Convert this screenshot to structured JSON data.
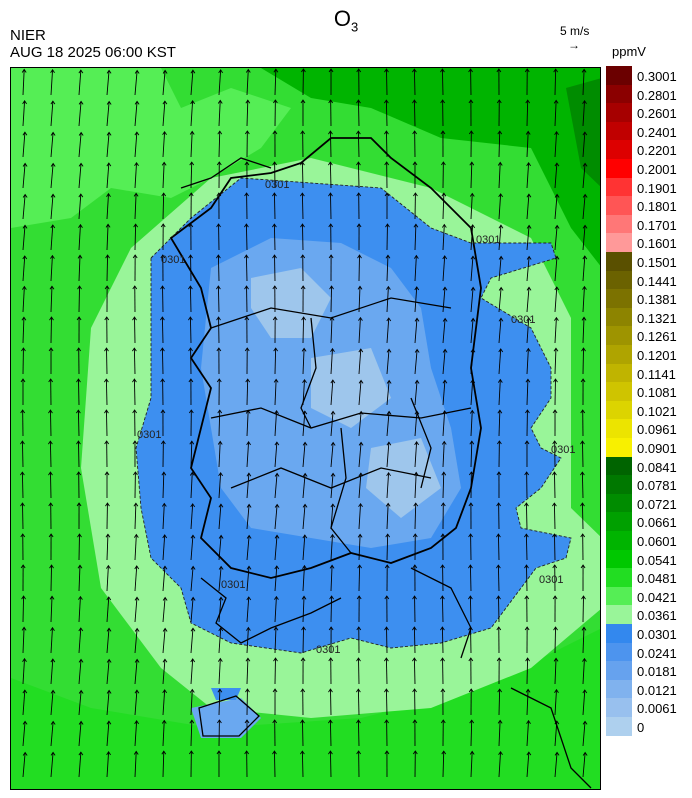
{
  "header": {
    "title_main": "O",
    "title_sub": "3",
    "organization": "NIER",
    "timestamp": "AUG 18 2025 06:00 KST",
    "wind_scale_label": "5 m/s",
    "wind_scale_arrow": "→",
    "unit_label": "ppmV"
  },
  "map": {
    "contour_label": "0301",
    "colors": {
      "sea_green": "#33dd33",
      "light_green": "#7ff07f",
      "dark_green": "#009900",
      "blue": "#3d8ff0",
      "light_blue": "#6aa8f0",
      "pale_blue": "#9ec6ec"
    }
  },
  "legend": {
    "entries": [
      {
        "label": "0.3001",
        "color": "#6b0000"
      },
      {
        "label": "0.2801",
        "color": "#8b0000"
      },
      {
        "label": "0.2601",
        "color": "#a60000"
      },
      {
        "label": "0.2401",
        "color": "#c00000"
      },
      {
        "label": "0.2201",
        "color": "#dd0000"
      },
      {
        "label": "0.2001",
        "color": "#ff0000"
      },
      {
        "label": "0.1901",
        "color": "#ff3333"
      },
      {
        "label": "0.1801",
        "color": "#ff5555"
      },
      {
        "label": "0.1701",
        "color": "#ff7777"
      },
      {
        "label": "0.1601",
        "color": "#ff9999"
      },
      {
        "label": "0.1501",
        "color": "#5a5000"
      },
      {
        "label": "0.1441",
        "color": "#6b6200"
      },
      {
        "label": "0.1381",
        "color": "#7c7200"
      },
      {
        "label": "0.1321",
        "color": "#8d8400"
      },
      {
        "label": "0.1261",
        "color": "#9e9400"
      },
      {
        "label": "0.1201",
        "color": "#afa400"
      },
      {
        "label": "0.1141",
        "color": "#c0b400"
      },
      {
        "label": "0.1081",
        "color": "#cfc400"
      },
      {
        "label": "0.1021",
        "color": "#dcd400"
      },
      {
        "label": "0.0961",
        "color": "#ece400"
      },
      {
        "label": "0.0901",
        "color": "#f8f000"
      },
      {
        "label": "0.0841",
        "color": "#006400"
      },
      {
        "label": "0.0781",
        "color": "#007800"
      },
      {
        "label": "0.0721",
        "color": "#008c00"
      },
      {
        "label": "0.0661",
        "color": "#00a000"
      },
      {
        "label": "0.0601",
        "color": "#00b400"
      },
      {
        "label": "0.0541",
        "color": "#00c800"
      },
      {
        "label": "0.0481",
        "color": "#22dd22"
      },
      {
        "label": "0.0421",
        "color": "#55ee55"
      },
      {
        "label": "0.0361",
        "color": "#99f599"
      },
      {
        "label": "0.0301",
        "color": "#3388ee"
      },
      {
        "label": "0.0241",
        "color": "#4d94ee"
      },
      {
        "label": "0.0181",
        "color": "#66a2ee"
      },
      {
        "label": "0.0121",
        "color": "#80b2ee"
      },
      {
        "label": "0.0061",
        "color": "#98c0ee"
      },
      {
        "label": "0",
        "color": "#aed0ee"
      }
    ]
  }
}
